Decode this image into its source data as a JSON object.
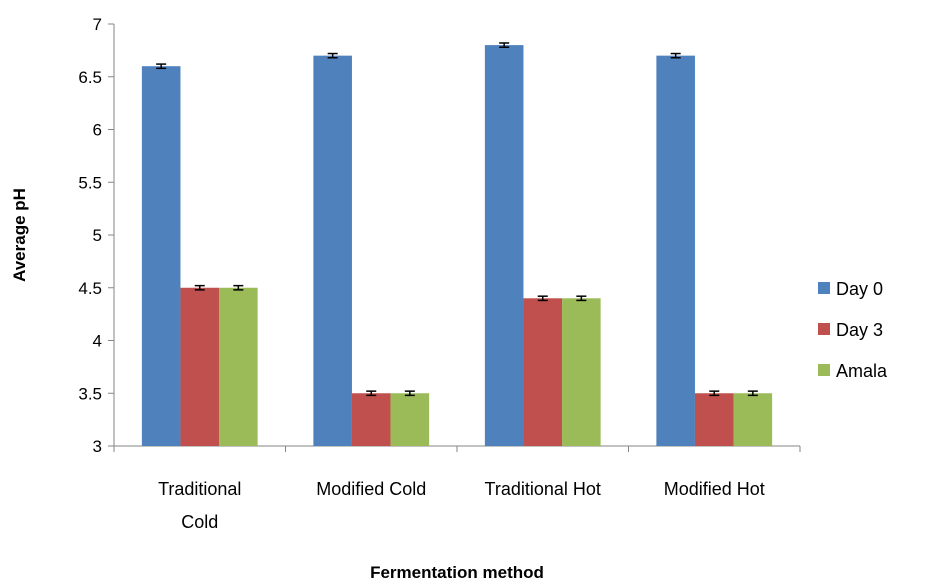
{
  "chart_data": {
    "type": "bar",
    "title": "",
    "xlabel": "Fermentation method",
    "ylabel": "Average pH",
    "categories": [
      [
        "Traditional",
        "Cold"
      ],
      [
        "Modified Cold"
      ],
      [
        "Traditional Hot"
      ],
      [
        "Modified Hot"
      ]
    ],
    "series": [
      {
        "name": "Day 0",
        "color": "#4F81BD",
        "values": [
          6.6,
          6.7,
          6.8,
          6.7
        ],
        "errors": [
          0.02,
          0.02,
          0.02,
          0.02
        ]
      },
      {
        "name": "Day 3",
        "color": "#C0504D",
        "values": [
          4.5,
          3.5,
          4.4,
          3.5
        ],
        "errors": [
          0.02,
          0.02,
          0.02,
          0.02
        ]
      },
      {
        "name": "Amala",
        "color": "#9BBB59",
        "values": [
          4.5,
          3.5,
          4.4,
          3.5
        ],
        "errors": [
          0.02,
          0.02,
          0.02,
          0.02
        ]
      }
    ],
    "ylim": [
      3,
      7
    ],
    "yticks": [
      "3",
      "3.5",
      "4",
      "4.5",
      "5",
      "5.5",
      "6",
      "6.5",
      "7"
    ],
    "grid": false,
    "legend_position": "right"
  }
}
